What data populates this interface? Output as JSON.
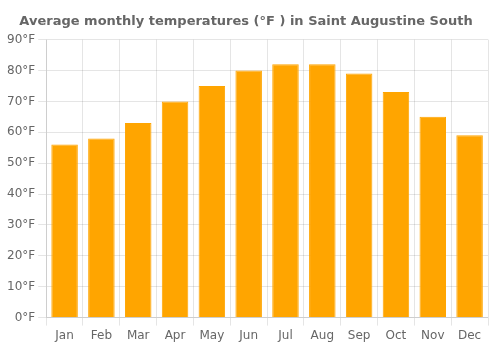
{
  "chart_data": {
    "type": "bar",
    "title": "Average monthly temperatures (°F ) in Saint Augustine South",
    "categories": [
      "Jan",
      "Feb",
      "Mar",
      "Apr",
      "May",
      "Jun",
      "Jul",
      "Aug",
      "Sep",
      "Oct",
      "Nov",
      "Dec"
    ],
    "values": [
      56,
      58,
      63,
      70,
      75,
      80,
      82,
      82,
      79,
      73,
      65,
      59
    ],
    "color": "#FFA500",
    "ylim": [
      0,
      90
    ],
    "yticks": [
      {
        "value": 0,
        "label": "0°F"
      },
      {
        "value": 10,
        "label": "10°F"
      },
      {
        "value": 20,
        "label": "20°F"
      },
      {
        "value": 30,
        "label": "30°F"
      },
      {
        "value": 40,
        "label": "40°F"
      },
      {
        "value": 50,
        "label": "50°F"
      },
      {
        "value": 60,
        "label": "60°F"
      },
      {
        "value": 70,
        "label": "70°F"
      },
      {
        "value": 80,
        "label": "80°F"
      },
      {
        "value": 90,
        "label": "90°F"
      }
    ],
    "grid": true
  }
}
